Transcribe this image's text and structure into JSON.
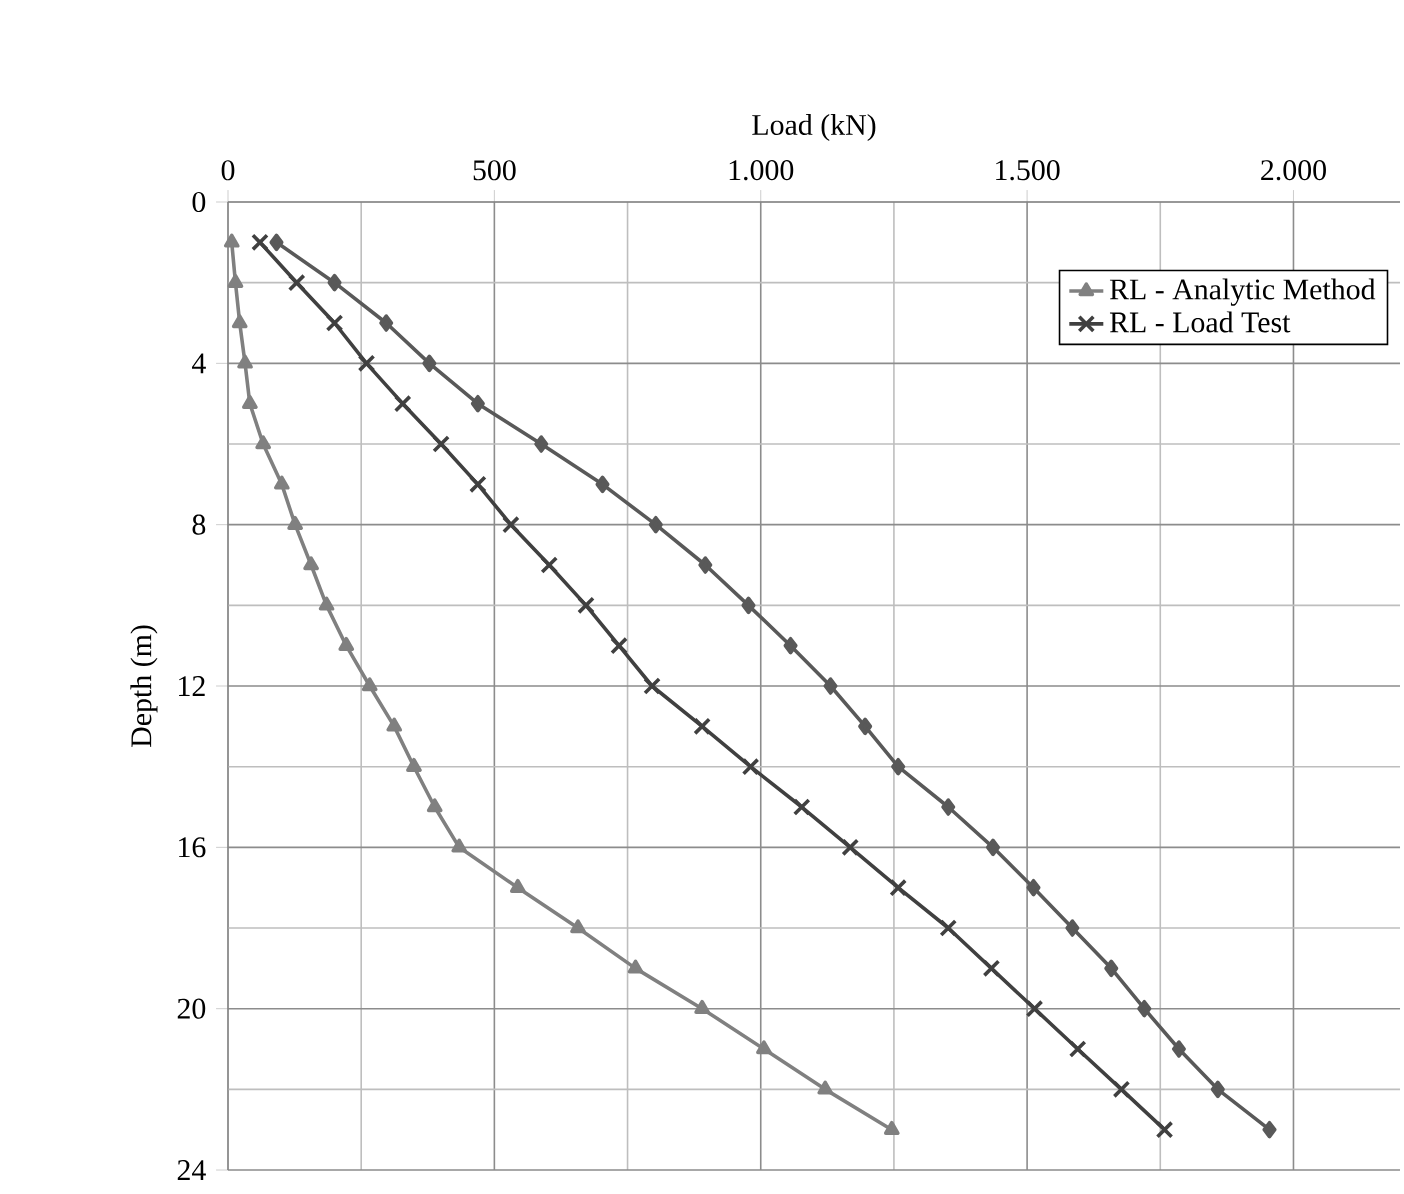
{
  "chart_data": {
    "type": "line",
    "xlabel": "Load (kN)",
    "ylabel": "Depth (m)",
    "xlim": [
      0,
      2200
    ],
    "ylim": [
      24,
      0
    ],
    "xticks": [
      0,
      500,
      {
        "value": 1000,
        "label": "1.000"
      },
      {
        "value": 1500,
        "label": "1.500"
      },
      {
        "value": 2000,
        "label": "2.000"
      }
    ],
    "yticks": [
      0,
      4,
      8,
      12,
      16,
      20,
      24
    ],
    "grid": true,
    "legend": "top right",
    "series": [
      {
        "name": "RL - Analytic Method",
        "color": "#808080",
        "marker": "triangle",
        "x": [
          7,
          14,
          22,
          32,
          41,
          66,
          101,
          126,
          156,
          185,
          222,
          266,
          312,
          349,
          388,
          434,
          544,
          657,
          765,
          890,
          1006,
          1121,
          1246
        ],
        "values": [
          1,
          2,
          3,
          4,
          5,
          6,
          7,
          8,
          9,
          10,
          11,
          12,
          13,
          14,
          15,
          16,
          17,
          18,
          19,
          20,
          21,
          22,
          23
        ]
      },
      {
        "name": "RL - Load Test",
        "color": "#404040",
        "marker": "cross",
        "x": [
          60,
          129,
          200,
          260,
          328,
          400,
          469,
          531,
          603,
          672,
          734,
          796,
          890,
          981,
          1077,
          1168,
          1258,
          1352,
          1433,
          1514,
          1595,
          1677,
          1758
        ],
        "values": [
          1,
          2,
          3,
          4,
          5,
          6,
          7,
          8,
          9,
          10,
          11,
          12,
          13,
          14,
          15,
          16,
          17,
          18,
          19,
          20,
          21,
          22,
          23
        ]
      },
      {
        "color": "#595959",
        "marker": "diamond",
        "x": [
          91,
          200,
          297,
          378,
          469,
          588,
          703,
          803,
          896,
          977,
          1056,
          1131,
          1196,
          1258,
          1352,
          1436,
          1512,
          1585,
          1658,
          1720,
          1785,
          1858,
          1955
        ],
        "values": [
          1,
          2,
          3,
          4,
          5,
          6,
          7,
          8,
          9,
          10,
          11,
          12,
          13,
          14,
          15,
          16,
          17,
          18,
          19,
          20,
          21,
          22,
          23
        ]
      }
    ]
  }
}
